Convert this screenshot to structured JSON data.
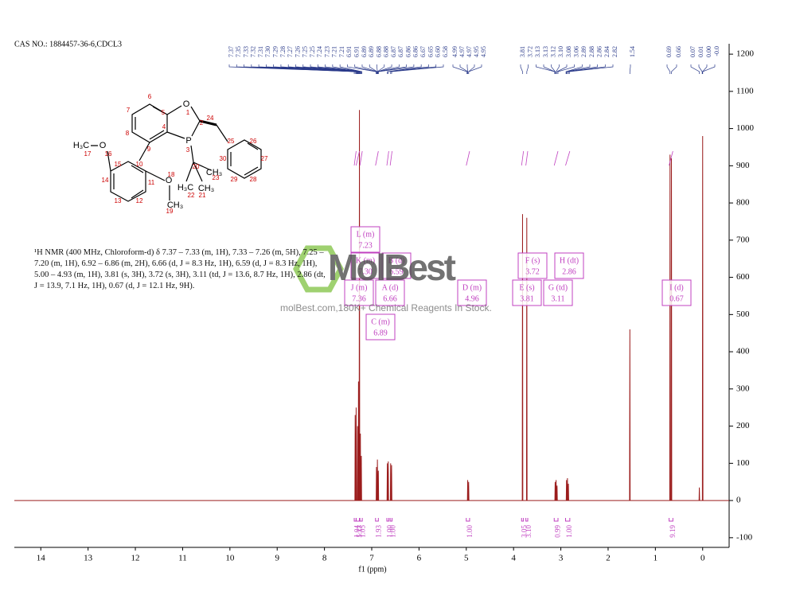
{
  "chart_data": {
    "type": "line",
    "title": "CAS NO.: 1884457-36-6,CDCL3",
    "x_label": "f1 (ppm)",
    "xlim": [
      14.56,
      -0.56
    ],
    "xticks": [
      14,
      13,
      12,
      11,
      10,
      9,
      8,
      7,
      6,
      5,
      4,
      3,
      2,
      1,
      0
    ],
    "ylim": [
      -126,
      1228
    ],
    "yticks": [
      -100,
      0,
      100,
      200,
      300,
      400,
      500,
      600,
      700,
      800,
      900,
      1000,
      1100,
      1200
    ],
    "series": [
      {
        "color": "#9b1c1c",
        "x": [
          14.56,
          7.356,
          7.35,
          7.344,
          7.336,
          7.33,
          7.324,
          7.306,
          7.3,
          7.294,
          7.286,
          7.28,
          7.274,
          7.266,
          7.26,
          7.254,
          7.246,
          7.24,
          7.234,
          7.226,
          7.22,
          7.214,
          6.906,
          6.9,
          6.894,
          6.886,
          6.88,
          6.874,
          6.866,
          6.86,
          6.854,
          6.676,
          6.67,
          6.664,
          6.656,
          6.65,
          6.644,
          6.606,
          6.6,
          6.594,
          6.586,
          6.58,
          6.574,
          4.976,
          4.97,
          4.964,
          4.956,
          4.95,
          4.944,
          3.816,
          3.81,
          3.804,
          3.726,
          3.72,
          3.714,
          3.126,
          3.12,
          3.114,
          3.106,
          3.1,
          3.094,
          3.086,
          3.08,
          3.074,
          2.886,
          2.88,
          2.874,
          2.866,
          2.86,
          2.854,
          2.846,
          2.84,
          2.834,
          1.546,
          1.54,
          1.534,
          0.696,
          0.69,
          0.684,
          0.666,
          0.66,
          0.654,
          0.076,
          0.07,
          0.064,
          0.006,
          0,
          -0.006,
          -0.56
        ],
        "values": [
          0,
          0,
          230,
          0,
          0,
          250,
          0,
          0,
          200,
          0,
          0,
          320,
          0,
          0,
          1050,
          0,
          0,
          180,
          0,
          0,
          120,
          0,
          0,
          90,
          0,
          0,
          110,
          0,
          0,
          80,
          0,
          0,
          100,
          0,
          0,
          105,
          0,
          0,
          100,
          0,
          0,
          95,
          0,
          0,
          55,
          0,
          0,
          50,
          0,
          0,
          770,
          0,
          0,
          760,
          0,
          0,
          50,
          0,
          0,
          55,
          0,
          0,
          40,
          0,
          0,
          55,
          0,
          0,
          60,
          0,
          0,
          45,
          0,
          0,
          460,
          0,
          0,
          930,
          0,
          0,
          920,
          0,
          0,
          35,
          0,
          0,
          980,
          0,
          0
        ]
      }
    ],
    "peak_labels": [
      [
        7.37,
        7.35,
        7.33,
        7.32,
        7.31,
        {
          "value": 7.3,
          "label": "7.30"
        },
        7.29,
        7.28,
        7.27,
        7.26,
        7.25,
        7.25,
        7.24,
        7.23,
        7.21,
        7.21,
        6.91,
        6.91,
        6.89,
        6.89,
        6.88,
        6.88,
        6.87,
        6.87,
        6.86,
        6.86,
        6.67,
        6.65,
        {
          "value": 6.6,
          "label": "6.60"
        },
        6.58
      ],
      [
        4.99,
        4.97,
        4.97,
        4.95,
        4.95
      ],
      [
        3.81,
        3.72,
        3.13,
        3.13,
        3.12,
        {
          "value": 3.1,
          "label": "3.10"
        },
        3.08,
        3.06,
        2.89,
        2.88,
        2.86,
        2.84,
        2.82
      ],
      [
        1.54
      ],
      [
        0.69,
        0.66
      ],
      [
        0.07,
        0.01,
        {
          "value": 0,
          "label": "0.00"
        },
        {
          "value": 0,
          "label": "-0.0"
        }
      ]
    ],
    "integrals": [
      {
        "from": 7.37,
        "to": 7.33,
        "value": 1.04
      },
      {
        "from": 7.33,
        "to": 7.26,
        "value": 5.13
      },
      {
        "from": 7.25,
        "to": 7.2,
        "value": 1.05
      },
      {
        "from": 6.92,
        "to": 6.86,
        "value": 1.93
      },
      {
        "from": 6.68,
        "to": 6.64,
        "value": 1,
        "label": "1.00"
      },
      {
        "from": 6.61,
        "to": 6.57,
        "value": 1,
        "label": "1.00"
      },
      {
        "from": 5.0,
        "to": 4.93,
        "value": 1,
        "label": "1.00"
      },
      {
        "from": 3.83,
        "to": 3.79,
        "value": 3.05
      },
      {
        "from": 3.74,
        "to": 3.7,
        "value": 3.1,
        "label": "3.10"
      },
      {
        "from": 3.14,
        "to": 3.06,
        "value": 0.99
      },
      {
        "from": 2.9,
        "to": 2.81,
        "value": 1,
        "label": "1.00"
      },
      {
        "from": 0.71,
        "to": 0.63,
        "value": 9.19
      }
    ],
    "multiplets": [
      {
        "name": "L (m)",
        "shift": 7.23
      },
      {
        "name": "K (m)",
        "shift": {
          "value": 7.3,
          "label": "7.30"
        }
      },
      {
        "name": "B (d)",
        "shift": 6.59
      },
      {
        "name": "J (m)",
        "shift": 7.36
      },
      {
        "name": "A (d)",
        "shift": 6.66
      },
      {
        "name": "C (m)",
        "shift": 6.89
      },
      {
        "name": "D (m)",
        "shift": 4.96
      },
      {
        "name": "E (s)",
        "shift": 3.81
      },
      {
        "name": "F (s)",
        "shift": 3.72
      },
      {
        "name": "G (td)",
        "shift": 3.11
      },
      {
        "name": "H (dt)",
        "shift": 2.86
      },
      {
        "name": "I (d)",
        "shift": 0.67
      }
    ]
  },
  "nmr_text": "¹H NMR (400 MHz, Chloroform-d) δ 7.37 – 7.33 (m, 1H), 7.33 – 7.26 (m, 5H), 7.25 – 7.20 (m, 1H), 6.92 – 6.86 (m, 2H), 6.66 (d, J = 8.3 Hz, 1H), 6.59 (d, J = 8.3 Hz, 1H), 5.00 – 4.93 (m, 1H), 3.81 (s, 3H), 3.72 (s, 3H), 3.11 (td, J = 13.6, 8.7 Hz, 1H), 2.86 (dt, J = 13.9, 7.1 Hz, 1H), 0.67 (d, J = 12.1 Hz, 9H).",
  "structure": {
    "symbols": [
      "O",
      "P",
      "H₃C",
      "O",
      "O",
      "CH₃",
      "H₃C",
      "CH₃",
      "CH₃"
    ],
    "numbers": [
      1,
      2,
      3,
      4,
      5,
      6,
      7,
      8,
      9,
      10,
      11,
      12,
      13,
      14,
      15,
      16,
      17,
      18,
      19,
      20,
      21,
      22,
      23,
      24,
      25,
      26,
      27,
      28,
      29,
      30
    ]
  },
  "watermark": {
    "logo": "MolBest",
    "slogan": "molBest.com,180K+ Chemical Reagents In Stock."
  }
}
